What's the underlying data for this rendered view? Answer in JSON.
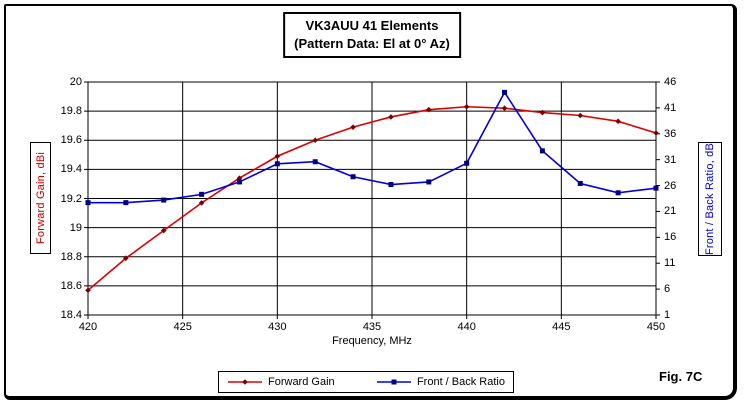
{
  "title": {
    "line1": "VK3AUU 41 Elements",
    "line2": "(Pattern Data: El at 0° Az)"
  },
  "caption": "Fig. 7C",
  "chart_data": {
    "type": "line",
    "title": "VK3AUU 41 Elements (Pattern Data: El at 0° Az)",
    "xlabel": "Frequency, MHz",
    "x_range": [
      420,
      450
    ],
    "x_ticks": [
      "420",
      "425",
      "430",
      "435",
      "440",
      "445",
      "450"
    ],
    "grid": true,
    "legend_position": "bottom",
    "x": [
      420,
      422,
      424,
      426,
      428,
      430,
      432,
      434,
      436,
      438,
      440,
      442,
      444,
      446,
      448,
      450
    ],
    "y_left": {
      "label": "Forward Gain,  dBi",
      "color": "#cc0000",
      "min": 18.4,
      "max": 20,
      "ticks": [
        "18.4",
        "18.6",
        "18.8",
        "19",
        "19.2",
        "19.4",
        "19.6",
        "19.8",
        "20"
      ]
    },
    "y_right": {
      "label": "Front / Back Ratio,  dB",
      "color": "#0000cc",
      "min": 1,
      "max": 46,
      "ticks": [
        "1",
        "6",
        "11",
        "16",
        "21",
        "26",
        "31",
        "36",
        "41",
        "46"
      ]
    },
    "series": [
      {
        "name": "Forward Gain",
        "axis": "left",
        "color": "#dd0000",
        "marker_color": "#7a0000",
        "marker": "diamond",
        "values": [
          18.57,
          18.79,
          18.98,
          19.17,
          19.34,
          19.49,
          19.6,
          19.69,
          19.76,
          19.81,
          19.83,
          19.82,
          19.79,
          19.77,
          19.73,
          19.65
        ]
      },
      {
        "name": "Front / Back Ratio",
        "axis": "right",
        "color": "#0000dd",
        "marker_color": "#000080",
        "marker": "square",
        "values": [
          22.7,
          22.7,
          23.2,
          24.3,
          26.7,
          30.2,
          30.6,
          27.7,
          26.2,
          26.7,
          30.3,
          44.0,
          32.7,
          26.4,
          24.6,
          25.5
        ]
      }
    ]
  }
}
